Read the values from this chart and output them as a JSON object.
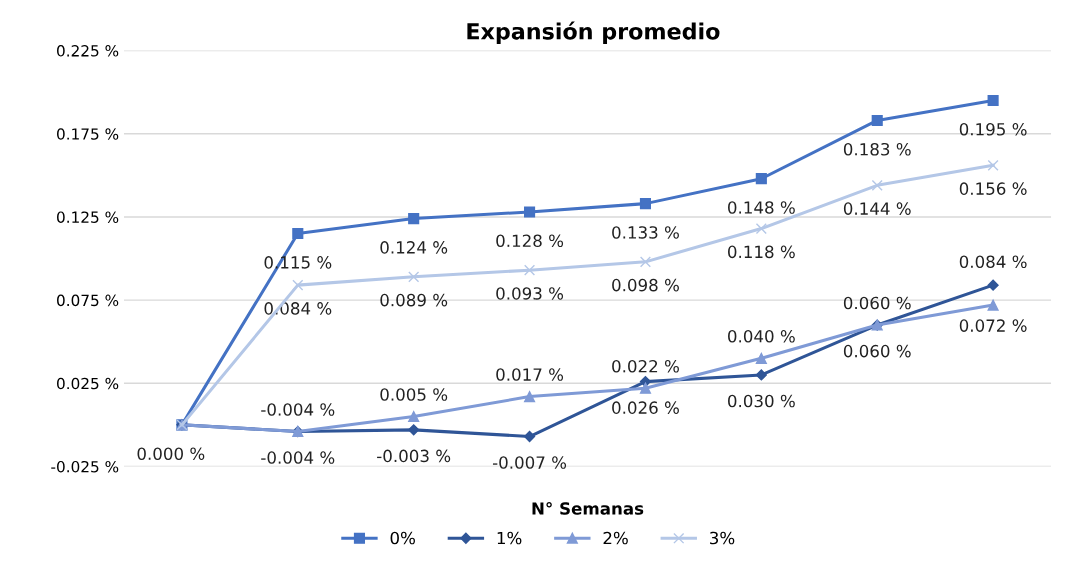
{
  "chart_data": {
    "type": "line",
    "title": "Expansión promedio",
    "xlabel": "N° Semanas",
    "categories": [
      null,
      null,
      null,
      null,
      null,
      null,
      null,
      null
    ],
    "ylim": [
      -0.025,
      0.225
    ],
    "yticks": [
      {
        "value": -0.025,
        "label": "-0.025 %"
      },
      {
        "value": 0.025,
        "label": "0.025 %"
      },
      {
        "value": 0.075,
        "label": "0.075 %"
      },
      {
        "value": 0.125,
        "label": "0.125 %"
      },
      {
        "value": 0.175,
        "label": "0.175 %"
      },
      {
        "value": 0.225,
        "label": "0.225 %"
      }
    ],
    "grid": "y",
    "legend": "bottom",
    "series": [
      {
        "name": "0%",
        "color": "#4472c4",
        "marker": "square",
        "values": [
          0.0,
          0.115,
          0.124,
          0.128,
          0.133,
          0.148,
          0.183,
          0.195
        ],
        "value_labels": [
          "0.000 %",
          "0.115 %",
          "0.124 %",
          "0.128 %",
          "0.133 %",
          "0.148 %",
          "0.183 %",
          "0.195 %"
        ]
      },
      {
        "name": "1%",
        "color": "#2f5597",
        "marker": "diamond",
        "values": [
          0.0,
          -0.004,
          -0.003,
          -0.007,
          0.026,
          0.03,
          0.06,
          0.084
        ],
        "value_labels": [
          null,
          "-0.004 %",
          "-0.003 %",
          "-0.007 %",
          "0.026 %",
          "0.030 %",
          "0.060 %",
          "0.084 %"
        ]
      },
      {
        "name": "2%",
        "color": "#7f9ad6",
        "marker": "triangle",
        "values": [
          0.0,
          -0.004,
          0.005,
          0.017,
          0.022,
          0.04,
          0.06,
          0.072
        ],
        "value_labels": [
          null,
          "-0.004 %",
          "0.005 %",
          "0.017 %",
          "0.022 %",
          "0.040 %",
          "0.060 %",
          "0.072 %"
        ]
      },
      {
        "name": "3%",
        "color": "#b4c7e7",
        "marker": "cross",
        "values": [
          0.0,
          0.084,
          0.089,
          0.093,
          0.098,
          0.118,
          0.144,
          0.156
        ],
        "value_labels": [
          null,
          "0.084 %",
          "0.089 %",
          "0.093 %",
          "0.098 %",
          "0.118 %",
          "0.144 %",
          "0.156 %"
        ]
      }
    ]
  }
}
